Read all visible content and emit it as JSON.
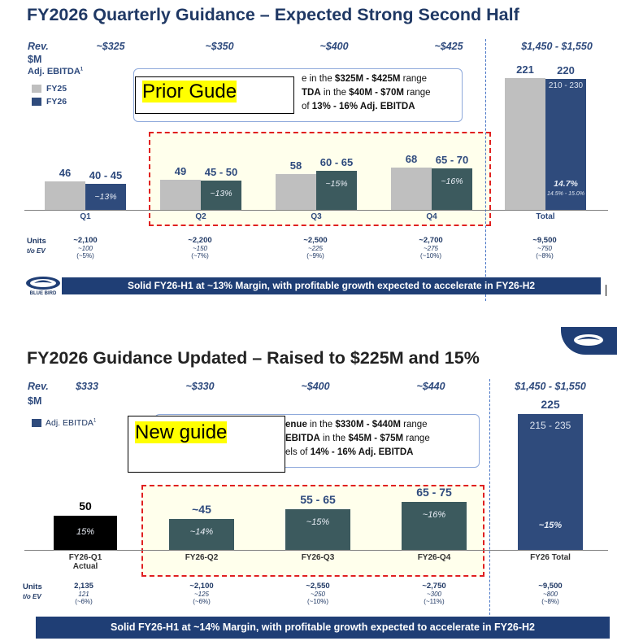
{
  "top": {
    "title": "FY2026 Quarterly Guidance – Expected Strong Second Half",
    "rev_label": "Rev.",
    "m_label": "$M",
    "ebitda_label": "Adj. EBITDA",
    "ebitda_sup": "1",
    "legend": [
      {
        "name": "FY25",
        "color": "#bfbfbf"
      },
      {
        "name": "FY26",
        "color": "#2f4b7c"
      }
    ],
    "revenue_headers": [
      "~$325",
      "~$350",
      "~$400",
      "~$425",
      "$1,450 - $1,550"
    ],
    "note_lines": [
      {
        "pre": "",
        "a": "",
        "mid": "e in the ",
        "b": "$325M - $425M",
        "post": " range"
      },
      {
        "pre": "",
        "a": "TDA",
        "mid": " in the ",
        "b": "$40M - $70M",
        "post": " range"
      },
      {
        "pre": "",
        "a": "",
        "mid": "of ",
        "b": "13% - 16% Adj. EBITDA",
        "post": ""
      }
    ],
    "guide_label": "Prior Gude",
    "units_label": "Units",
    "units_sub": "t/o EV",
    "units": [
      {
        "u": "~2,100",
        "ev": "~100",
        "pct": "(~5%)"
      },
      {
        "u": "~2,200",
        "ev": "~150",
        "pct": "(~7%)"
      },
      {
        "u": "~2,500",
        "ev": "~225",
        "pct": "(~9%)"
      },
      {
        "u": "~2,700",
        "ev": "~275",
        "pct": "(~10%)"
      },
      {
        "u": "~9,500",
        "ev": "~750",
        "pct": "(~8%)"
      }
    ],
    "banner": "Solid FY26-H1 at ~13% Margin, with profitable growth expected to accelerate in FY26-H2",
    "logo": "BLUE BIRD"
  },
  "bottom": {
    "title": "FY2026 Guidance Updated – Raised to $225M and 15%",
    "rev_label": "Rev.",
    "m_label": "$M",
    "ebitda_label": "Adj. EBITDA",
    "ebitda_sup": "1",
    "revenue_headers": [
      "$333",
      "~$330",
      "~$400",
      "~$440",
      "$1,450 - $1,550"
    ],
    "note_lines": [
      {
        "a": "enue",
        "mid": " in the ",
        "b": "$330M - $440M",
        "post": " range"
      },
      {
        "a": "EBITDA",
        "mid": " in the ",
        "b": "$45M - $75M",
        "post": " range"
      },
      {
        "a": "",
        "mid": "els of ",
        "b": "14% - 16% Adj. EBITDA",
        "post": ""
      }
    ],
    "guide_label": "New guide",
    "units_label": "Units",
    "units_sub": "t/o EV",
    "units": [
      {
        "u": "2,135",
        "ev": "121",
        "pct": "(~6%)"
      },
      {
        "u": "~2,100",
        "ev": "~125",
        "pct": "(~6%)"
      },
      {
        "u": "~2,550",
        "ev": "~250",
        "pct": "(~10%)"
      },
      {
        "u": "~2,750",
        "ev": "~300",
        "pct": "(~11%)"
      },
      {
        "u": "~9,500",
        "ev": "~800",
        "pct": "(~8%)"
      }
    ],
    "banner": "Solid FY26-H1 at ~14% Margin, with profitable growth expected to accelerate in FY26-H2"
  },
  "chart_data": [
    {
      "type": "bar",
      "title": "FY2026 Quarterly Guidance – Expected Strong Second Half",
      "categories": [
        "Q1",
        "Q2",
        "Q3",
        "Q4",
        "Total"
      ],
      "series": [
        {
          "name": "FY25",
          "values": [
            46,
            49,
            58,
            68,
            221
          ],
          "labels": [
            "46",
            "49",
            "58",
            "68",
            "221"
          ]
        },
        {
          "name": "FY26",
          "values": [
            42.5,
            47.5,
            62.5,
            67.5,
            220
          ],
          "labels": [
            "40 - 45",
            "45 - 50",
            "60 - 65",
            "65 - 70",
            "220"
          ],
          "inner": [
            "~13%",
            "~13%",
            "~15%",
            "~16%",
            "14.7%"
          ],
          "total_range": "210 - 230",
          "total_margin_range": "14.5% - 15.0%"
        }
      ]
    },
    {
      "type": "bar",
      "title": "FY2026 Guidance Updated – Raised to $225M and 15%",
      "categories": [
        "FY26-Q1",
        "FY26-Q2",
        "FY26-Q3",
        "FY26-Q4",
        "FY26 Total"
      ],
      "category_sub": [
        "Actual",
        "",
        "",
        "",
        ""
      ],
      "series": [
        {
          "name": "Adj. EBITDA",
          "values": [
            50,
            45,
            60,
            70,
            225
          ],
          "labels": [
            "50",
            "~45",
            "55 - 65",
            "65 - 75",
            "225"
          ],
          "inner": [
            "15%",
            "~14%",
            "~15%",
            "~16%",
            "~15%"
          ],
          "total_range": "215 - 235"
        }
      ]
    }
  ]
}
